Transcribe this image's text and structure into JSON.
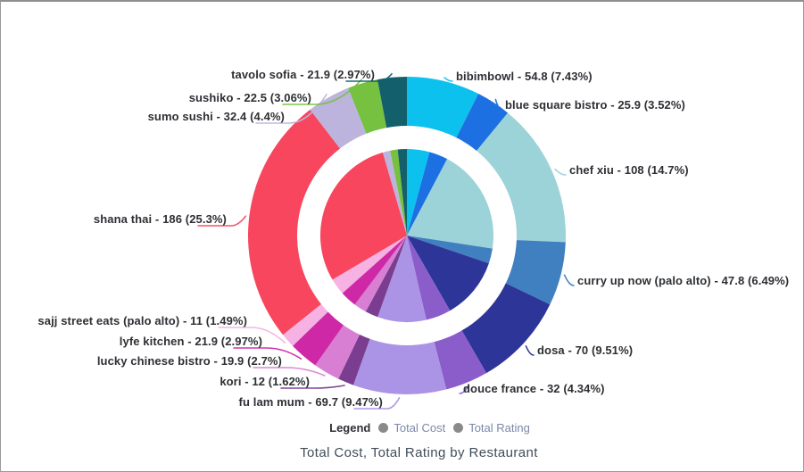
{
  "chart": {
    "title": "Total Cost, Total Rating by Restaurant",
    "legend": {
      "label": "Legend",
      "items": [
        {
          "label": "Total Cost",
          "dot_color": "#8a8a8a"
        },
        {
          "label": "Total Rating",
          "dot_color": "#8a8a8a"
        }
      ]
    }
  },
  "chart_data": {
    "type": "pie",
    "subtype": "two-ring-donut",
    "title": "Total Cost, Total Rating by Restaurant",
    "legend_position": "bottom",
    "clockwise_from_top": true,
    "categories": [
      "bibimbowl",
      "blue square bistro",
      "chef xiu",
      "curry up now (palo alto)",
      "dosa",
      "douce france",
      "fu lam mum",
      "kori",
      "lucky chinese bistro",
      "lyfe kitchen",
      "sajj street eats (palo alto)",
      "shana thai",
      "sumo sushi",
      "sushiko",
      "tavolo sofia"
    ],
    "slice_labels": [
      "bibimbowl - 54.8 (7.43%)",
      "blue square bistro - 25.9 (3.52%)",
      "chef xiu - 108 (14.7%)",
      "curry up now (palo alto) - 47.8 (6.49%)",
      "dosa - 70 (9.51%)",
      "douce france - 32 (4.34%)",
      "fu lam mum - 69.7 (9.47%)",
      "kori - 12 (1.62%)",
      "lucky chinese bistro - 19.9 (2.7%)",
      "lyfe kitchen - 21.9 (2.97%)",
      "sajj street eats (palo alto) - 11 (1.49%)",
      "shana thai - 186 (25.3%)",
      "sumo sushi - 32.4 (4.4%)",
      "sushiko - 22.5 (3.06%)",
      "tavolo sofia - 21.9 (2.97%)"
    ],
    "series": [
      {
        "name": "Total Cost",
        "ring": "outer",
        "values": [
          54.8,
          25.9,
          108,
          47.8,
          70,
          32,
          69.7,
          12,
          19.9,
          21.9,
          11,
          186,
          32.4,
          22.5,
          21.9
        ],
        "percents": [
          7.43,
          3.52,
          14.7,
          6.49,
          9.51,
          4.34,
          9.47,
          1.62,
          2.7,
          2.97,
          1.49,
          25.3,
          4.4,
          3.06,
          2.97
        ]
      },
      {
        "name": "Total Rating",
        "ring": "inner",
        "values_shown_on_chart": false,
        "percents_estimated": [
          4.2,
          3.5,
          19.7,
          2.8,
          11.5,
          4.7,
          9.1,
          2.4,
          2.4,
          3.1,
          3.1,
          29.0,
          1.4,
          1.4,
          1.7
        ]
      }
    ],
    "colors": [
      "#0cc1ee",
      "#1d70e2",
      "#9cd3d9",
      "#4180c0",
      "#2e3598",
      "#8a5dcb",
      "#ab93e6",
      "#7b3d90",
      "#d97fd3",
      "#ce28a6",
      "#f5b2e3",
      "#f7465e",
      "#bcb4dc",
      "#76c13f",
      "#135f6b"
    ]
  }
}
